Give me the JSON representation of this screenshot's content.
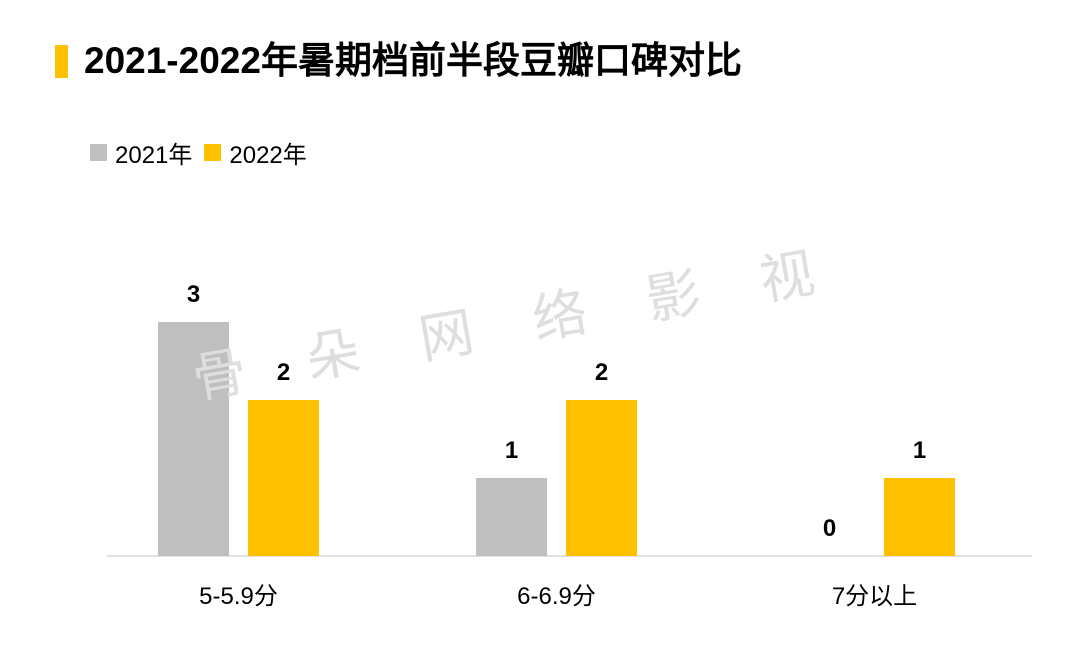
{
  "watermark": "骨 朵 网 络 影 视",
  "colors": {
    "accent": "#ffc000",
    "background": "#ffffff",
    "axis": "#d9d9d9"
  },
  "chart_data": {
    "type": "bar",
    "title": "2021-2022年暑期档前半段豆瓣口碑对比",
    "categories": [
      "5-5.9分",
      "6-6.9分",
      "7分以上"
    ],
    "series": [
      {
        "name": "2021年",
        "values": [
          3,
          1,
          0
        ],
        "color": "#bfbfbf"
      },
      {
        "name": "2022年",
        "values": [
          2,
          2,
          1
        ],
        "color": "#ffc000"
      }
    ],
    "legend": "top-left",
    "grid": false,
    "data_labels": true
  }
}
